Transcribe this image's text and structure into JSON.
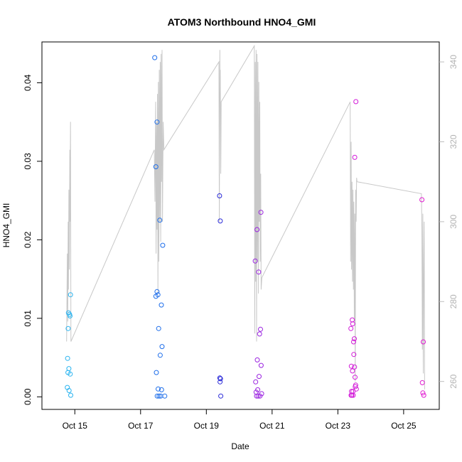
{
  "chart_data": {
    "type": "scatter",
    "title": "ATOM3 Northbound HNO4_GMI",
    "xlabel": "Date",
    "ylabel": "HNO4_GMI",
    "xlim": [
      "2017-10-14T00:00",
      "2017-10-26T02:00"
    ],
    "ylim": [
      -0.0016,
      0.0452
    ],
    "x_ticks": [
      {
        "label": "Oct 15",
        "date": "2017-10-15"
      },
      {
        "label": "Oct 17",
        "date": "2017-10-17"
      },
      {
        "label": "Oct 19",
        "date": "2017-10-19"
      },
      {
        "label": "Oct 21",
        "date": "2017-10-21"
      },
      {
        "label": "Oct 23",
        "date": "2017-10-23"
      },
      {
        "label": "Oct 25",
        "date": "2017-10-25"
      }
    ],
    "y_ticks": [
      "0.00",
      "0.01",
      "0.02",
      "0.03",
      "0.04"
    ],
    "y_tick_values": [
      0,
      0.01,
      0.02,
      0.03,
      0.04
    ],
    "secondary_axis": {
      "ylim": [
        253,
        345
      ],
      "ticks": [
        "260",
        "280",
        "300",
        "320",
        "340"
      ],
      "tick_values": [
        260,
        280,
        300,
        320,
        340
      ],
      "color": "#bebebe"
    },
    "grid": false,
    "points": [
      {
        "x": "2017-10-14T18:30",
        "y": 0.0012,
        "color": "#2ab4f0"
      },
      {
        "x": "2017-10-14T18:45",
        "y": 0.0049,
        "color": "#2ab4f0"
      },
      {
        "x": "2017-10-14T19:00",
        "y": 0.0031,
        "color": "#2ab4f0"
      },
      {
        "x": "2017-10-14T19:10",
        "y": 0.0087,
        "color": "#2ab4f0"
      },
      {
        "x": "2017-10-14T19:20",
        "y": 0.0107,
        "color": "#2ab4f0"
      },
      {
        "x": "2017-10-14T19:40",
        "y": 0.0036,
        "color": "#2ab4f0"
      },
      {
        "x": "2017-10-14T19:50",
        "y": 0.0008,
        "color": "#2ab4f0"
      },
      {
        "x": "2017-10-14T20:10",
        "y": 0.0105,
        "color": "#2ab4f0"
      },
      {
        "x": "2017-10-14T20:30",
        "y": 0.0103,
        "color": "#2ab4f0"
      },
      {
        "x": "2017-10-14T20:40",
        "y": 0.0029,
        "color": "#2ab4f0"
      },
      {
        "x": "2017-10-14T20:50",
        "y": 0.013,
        "color": "#2ab4f0"
      },
      {
        "x": "2017-10-14T21:00",
        "y": 0.0002,
        "color": "#2ab4f0"
      },
      {
        "x": "2017-10-17T10:20",
        "y": 0.0432,
        "color": "#1e6eea"
      },
      {
        "x": "2017-10-17T11:10",
        "y": 0.0293,
        "color": "#1e6eea"
      },
      {
        "x": "2017-10-17T11:10",
        "y": 0.0128,
        "color": "#1e6eea"
      },
      {
        "x": "2017-10-17T11:30",
        "y": 0.0031,
        "color": "#1e6eea"
      },
      {
        "x": "2017-10-17T12:00",
        "y": 0.035,
        "color": "#1e6eea"
      },
      {
        "x": "2017-10-17T12:00",
        "y": 0.0134,
        "color": "#1e6eea"
      },
      {
        "x": "2017-10-17T12:10",
        "y": 0.0001,
        "color": "#1e6eea"
      },
      {
        "x": "2017-10-17T12:40",
        "y": 0.013,
        "color": "#1e6eea"
      },
      {
        "x": "2017-10-17T12:50",
        "y": 0.001,
        "color": "#1e6eea"
      },
      {
        "x": "2017-10-17T13:10",
        "y": 0.0087,
        "color": "#1e6eea"
      },
      {
        "x": "2017-10-17T13:30",
        "y": 0.0001,
        "color": "#1e6eea"
      },
      {
        "x": "2017-10-17T14:00",
        "y": 0.0225,
        "color": "#1e6eea"
      },
      {
        "x": "2017-10-17T14:20",
        "y": 0.0053,
        "color": "#1e6eea"
      },
      {
        "x": "2017-10-17T14:40",
        "y": 0.0001,
        "color": "#1e6eea"
      },
      {
        "x": "2017-10-17T15:10",
        "y": 0.0117,
        "color": "#1e6eea"
      },
      {
        "x": "2017-10-17T15:20",
        "y": 0.0009,
        "color": "#1e6eea"
      },
      {
        "x": "2017-10-17T15:40",
        "y": 0.0064,
        "color": "#1e6eea"
      },
      {
        "x": "2017-10-17T16:10",
        "y": 0.0193,
        "color": "#1e6eea"
      },
      {
        "x": "2017-10-17T17:40",
        "y": 0.0001,
        "color": "#1e6eea"
      },
      {
        "x": "2017-10-19T09:40",
        "y": 0.0256,
        "color": "#2a2ad8"
      },
      {
        "x": "2017-10-19T09:50",
        "y": 0.0024,
        "color": "#2a2ad8"
      },
      {
        "x": "2017-10-19T10:00",
        "y": 0.0019,
        "color": "#2a2ad8"
      },
      {
        "x": "2017-10-19T10:10",
        "y": 0.0224,
        "color": "#2a2ad8"
      },
      {
        "x": "2017-10-19T10:20",
        "y": 0.0023,
        "color": "#2a2ad8"
      },
      {
        "x": "2017-10-19T10:30",
        "y": 0.0001,
        "color": "#2a2ad8"
      },
      {
        "x": "2017-10-20T11:40",
        "y": 0.0173,
        "color": "#9a22e0"
      },
      {
        "x": "2017-10-20T12:00",
        "y": 0.0019,
        "color": "#9a22e0"
      },
      {
        "x": "2017-10-20T12:20",
        "y": 0.0006,
        "color": "#9a22e0"
      },
      {
        "x": "2017-10-20T12:40",
        "y": 0.0001,
        "color": "#9a22e0"
      },
      {
        "x": "2017-10-20T13:00",
        "y": 0.0213,
        "color": "#9a22e0"
      },
      {
        "x": "2017-10-20T13:10",
        "y": 0.0047,
        "color": "#9a22e0"
      },
      {
        "x": "2017-10-20T13:30",
        "y": 0.0009,
        "color": "#9a22e0"
      },
      {
        "x": "2017-10-20T13:50",
        "y": 0.0001,
        "color": "#9a22e0"
      },
      {
        "x": "2017-10-20T14:10",
        "y": 0.0159,
        "color": "#9a22e0"
      },
      {
        "x": "2017-10-20T14:30",
        "y": 0.0026,
        "color": "#9a22e0"
      },
      {
        "x": "2017-10-20T14:50",
        "y": 0.008,
        "color": "#9a22e0"
      },
      {
        "x": "2017-10-20T15:10",
        "y": 0.0001,
        "color": "#9a22e0"
      },
      {
        "x": "2017-10-20T15:30",
        "y": 0.0086,
        "color": "#9a22e0"
      },
      {
        "x": "2017-10-20T15:50",
        "y": 0.0235,
        "color": "#9a22e0"
      },
      {
        "x": "2017-10-20T16:00",
        "y": 0.004,
        "color": "#9a22e0"
      },
      {
        "x": "2017-10-20T16:20",
        "y": 0.0004,
        "color": "#9a22e0"
      },
      {
        "x": "2017-10-23T09:30",
        "y": 0.0087,
        "color": "#d21ad8"
      },
      {
        "x": "2017-10-23T09:40",
        "y": 0.0002,
        "color": "#d21ad8"
      },
      {
        "x": "2017-10-23T09:50",
        "y": 0.0039,
        "color": "#d21ad8"
      },
      {
        "x": "2017-10-23T10:00",
        "y": 0.0007,
        "color": "#d21ad8"
      },
      {
        "x": "2017-10-23T10:10",
        "y": 0.0002,
        "color": "#d21ad8"
      },
      {
        "x": "2017-10-23T10:30",
        "y": 0.0098,
        "color": "#d21ad8"
      },
      {
        "x": "2017-10-23T10:40",
        "y": 0.0033,
        "color": "#d21ad8"
      },
      {
        "x": "2017-10-23T10:50",
        "y": 0.0093,
        "color": "#d21ad8"
      },
      {
        "x": "2017-10-23T11:00",
        "y": 0.0007,
        "color": "#d21ad8"
      },
      {
        "x": "2017-10-23T11:10",
        "y": 0.0002,
        "color": "#d21ad8"
      },
      {
        "x": "2017-10-23T11:30",
        "y": 0.007,
        "color": "#d21ad8"
      },
      {
        "x": "2017-10-23T11:40",
        "y": 0.0054,
        "color": "#d21ad8"
      },
      {
        "x": "2017-10-23T12:00",
        "y": 0.0074,
        "color": "#d21ad8"
      },
      {
        "x": "2017-10-23T12:10",
        "y": 0.0038,
        "color": "#d21ad8"
      },
      {
        "x": "2017-10-23T12:20",
        "y": 0.0305,
        "color": "#d21ad8"
      },
      {
        "x": "2017-10-23T12:30",
        "y": 0.0025,
        "color": "#d21ad8"
      },
      {
        "x": "2017-10-23T12:40",
        "y": 0.0013,
        "color": "#d21ad8"
      },
      {
        "x": "2017-10-23T13:00",
        "y": 0.0015,
        "color": "#d21ad8"
      },
      {
        "x": "2017-10-23T13:10",
        "y": 0.0376,
        "color": "#d21ad8"
      },
      {
        "x": "2017-10-23T13:30",
        "y": 0.001,
        "color": "#d21ad8"
      },
      {
        "x": "2017-10-25T13:20",
        "y": 0.0251,
        "color": "#e01ad0"
      },
      {
        "x": "2017-10-25T13:40",
        "y": 0.0018,
        "color": "#e01ad0"
      },
      {
        "x": "2017-10-25T14:00",
        "y": 0.0005,
        "color": "#e01ad0"
      },
      {
        "x": "2017-10-25T14:20",
        "y": 0.007,
        "color": "#e01ad0"
      },
      {
        "x": "2017-10-25T14:40",
        "y": 0.0002,
        "color": "#e01ad0"
      }
    ],
    "secondary_line": {
      "color": "#c8c8c8",
      "x": [
        "2017-10-14T18:00",
        "2017-10-14T18:30",
        "2017-10-14T18:50",
        "2017-10-14T19:10",
        "2017-10-14T19:20",
        "2017-10-14T19:40",
        "2017-10-14T20:00",
        "2017-10-14T20:20",
        "2017-10-14T20:30",
        "2017-10-14T20:50",
        "2017-10-14T21:10",
        "2017-10-17T10:00",
        "2017-10-17T10:30",
        "2017-10-17T11:00",
        "2017-10-17T11:20",
        "2017-10-17T11:40",
        "2017-10-17T12:00",
        "2017-10-17T12:20",
        "2017-10-17T12:40",
        "2017-10-17T13:00",
        "2017-10-17T13:20",
        "2017-10-17T13:40",
        "2017-10-17T14:00",
        "2017-10-17T14:20",
        "2017-10-17T14:40",
        "2017-10-17T15:00",
        "2017-10-17T15:20",
        "2017-10-17T15:40",
        "2017-10-17T16:00",
        "2017-10-17T16:30",
        "2017-10-17T17:00",
        "2017-10-19T09:10",
        "2017-10-19T09:30",
        "2017-10-19T09:50",
        "2017-10-19T10:00",
        "2017-10-19T10:10",
        "2017-10-19T10:30",
        "2017-10-19T10:50",
        "2017-10-20T11:00",
        "2017-10-20T11:20",
        "2017-10-20T11:40",
        "2017-10-20T12:00",
        "2017-10-20T12:20",
        "2017-10-20T12:40",
        "2017-10-20T13:00",
        "2017-10-20T13:20",
        "2017-10-20T13:40",
        "2017-10-20T14:00",
        "2017-10-20T14:20",
        "2017-10-20T14:40",
        "2017-10-20T15:00",
        "2017-10-20T15:20",
        "2017-10-20T15:40",
        "2017-10-20T16:00",
        "2017-10-20T16:30",
        "2017-10-23T09:00",
        "2017-10-23T09:20",
        "2017-10-23T09:40",
        "2017-10-23T10:00",
        "2017-10-23T10:20",
        "2017-10-23T10:40",
        "2017-10-23T11:00",
        "2017-10-23T11:20",
        "2017-10-23T11:40",
        "2017-10-23T12:00",
        "2017-10-23T12:20",
        "2017-10-23T12:40",
        "2017-10-23T13:00",
        "2017-10-23T13:20",
        "2017-10-23T13:40",
        "2017-10-23T14:00",
        "2017-10-25T13:00",
        "2017-10-25T13:20",
        "2017-10-25T13:40",
        "2017-10-25T14:00",
        "2017-10-25T14:20",
        "2017-10-25T14:40",
        "2017-10-25T15:00",
        "2017-10-25T15:20"
      ],
      "y": [
        270,
        292,
        275,
        300,
        283,
        308,
        288,
        318,
        300,
        325,
        270,
        318,
        305,
        330,
        292,
        325,
        298,
        332,
        282,
        335,
        290,
        338,
        300,
        340,
        295,
        342,
        310,
        343,
        300,
        325,
        318,
        340,
        300,
        343,
        330,
        338,
        312,
        330,
        344,
        272,
        340,
        285,
        343,
        270,
        342,
        290,
        340,
        282,
        335,
        300,
        330,
        290,
        312,
        283,
        286,
        330,
        290,
        320,
        288,
        310,
        285,
        308,
        283,
        305,
        275,
        302,
        260,
        308,
        300,
        311,
        310,
        307,
        298,
        268,
        302,
        262,
        288,
        300,
        258
      ]
    }
  }
}
